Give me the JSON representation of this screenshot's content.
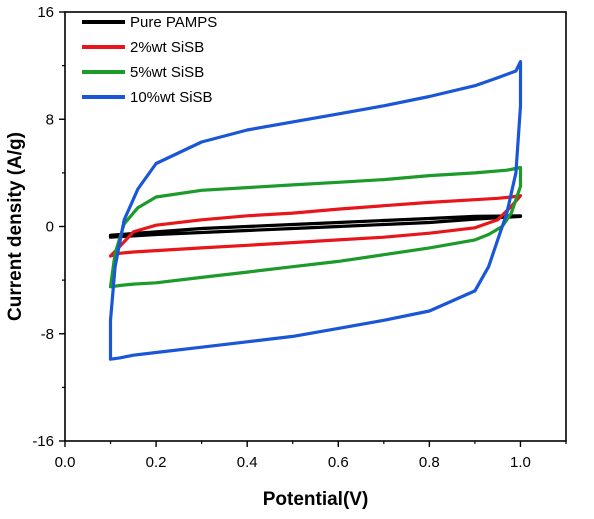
{
  "chart_data": {
    "type": "line",
    "title": "",
    "xlabel": "Potential(V)",
    "ylabel": "Current density (A/g)",
    "xlim": [
      0.0,
      1.1
    ],
    "ylim": [
      -16,
      16
    ],
    "xticks": [
      0.0,
      0.2,
      0.4,
      0.6,
      0.8,
      1.0
    ],
    "xtick_labels": [
      "0.0",
      "0.2",
      "0.4",
      "0.6",
      "0.8",
      "1.0"
    ],
    "yticks": [
      -16,
      -8,
      0,
      8,
      16
    ],
    "ytick_labels": [
      "-16",
      "-8",
      "0",
      "8",
      "16"
    ],
    "grid": false,
    "legend_position": "top-left",
    "series": [
      {
        "name": "Pure PAMPS",
        "color": "#000000",
        "x": [
          0.1,
          0.2,
          0.3,
          0.4,
          0.5,
          0.6,
          0.7,
          0.8,
          0.9,
          1.0,
          1.0,
          0.9,
          0.8,
          0.7,
          0.6,
          0.5,
          0.4,
          0.3,
          0.2,
          0.1,
          0.1
        ],
        "y": [
          -0.8,
          -0.6,
          -0.45,
          -0.3,
          -0.15,
          0.0,
          0.15,
          0.3,
          0.55,
          0.75,
          0.8,
          0.75,
          0.6,
          0.45,
          0.3,
          0.15,
          0.0,
          -0.15,
          -0.4,
          -0.65,
          -0.8
        ]
      },
      {
        "name": "2%wt SiSB",
        "color": "#e8161b",
        "x": [
          0.1,
          0.12,
          0.15,
          0.2,
          0.3,
          0.4,
          0.5,
          0.6,
          0.7,
          0.8,
          0.9,
          0.95,
          0.98,
          1.0,
          0.98,
          0.95,
          0.9,
          0.8,
          0.7,
          0.6,
          0.5,
          0.4,
          0.3,
          0.2,
          0.15,
          0.12,
          0.1
        ],
        "y": [
          -2.2,
          -1.5,
          -0.4,
          0.1,
          0.5,
          0.8,
          1.0,
          1.3,
          1.55,
          1.8,
          2.0,
          2.1,
          2.2,
          2.3,
          1.5,
          0.5,
          -0.1,
          -0.5,
          -0.8,
          -1.0,
          -1.2,
          -1.4,
          -1.6,
          -1.8,
          -1.9,
          -2.0,
          -2.2
        ]
      },
      {
        "name": "5%wt SiSB",
        "color": "#1c9a2a",
        "x": [
          0.1,
          0.11,
          0.13,
          0.16,
          0.2,
          0.3,
          0.4,
          0.5,
          0.6,
          0.7,
          0.8,
          0.9,
          0.97,
          1.0,
          1.0,
          0.98,
          0.96,
          0.93,
          0.9,
          0.8,
          0.7,
          0.6,
          0.5,
          0.4,
          0.3,
          0.2,
          0.15,
          0.12,
          0.1
        ],
        "y": [
          -4.5,
          -2.0,
          0.2,
          1.4,
          2.2,
          2.7,
          2.9,
          3.1,
          3.3,
          3.5,
          3.8,
          4.0,
          4.2,
          4.4,
          3.0,
          1.0,
          0.0,
          -0.6,
          -1.0,
          -1.6,
          -2.1,
          -2.6,
          -3.0,
          -3.4,
          -3.8,
          -4.2,
          -4.3,
          -4.4,
          -4.5
        ]
      },
      {
        "name": "10%wt SiSB",
        "color": "#1a56d8",
        "x": [
          0.1,
          0.1,
          0.11,
          0.13,
          0.16,
          0.2,
          0.3,
          0.4,
          0.5,
          0.6,
          0.7,
          0.8,
          0.9,
          0.95,
          0.99,
          1.0,
          1.0,
          0.99,
          0.97,
          0.95,
          0.93,
          0.9,
          0.8,
          0.7,
          0.6,
          0.5,
          0.4,
          0.3,
          0.2,
          0.15,
          0.12,
          0.1
        ],
        "y": [
          -9.9,
          -7.0,
          -3.0,
          0.5,
          2.8,
          4.7,
          6.3,
          7.2,
          7.8,
          8.4,
          9.0,
          9.7,
          10.5,
          11.1,
          11.6,
          12.3,
          9.0,
          4.0,
          1.0,
          -1.0,
          -3.0,
          -4.8,
          -6.3,
          -7.0,
          -7.6,
          -8.2,
          -8.6,
          -9.0,
          -9.4,
          -9.6,
          -9.8,
          -9.9
        ]
      }
    ]
  }
}
